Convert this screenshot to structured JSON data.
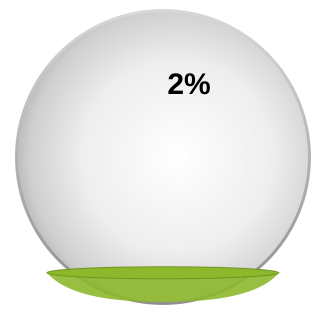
{
  "chart_data": {
    "type": "liquid",
    "values": [
      2
    ],
    "value_labels": [
      "2%"
    ],
    "color": "#8db82c"
  }
}
